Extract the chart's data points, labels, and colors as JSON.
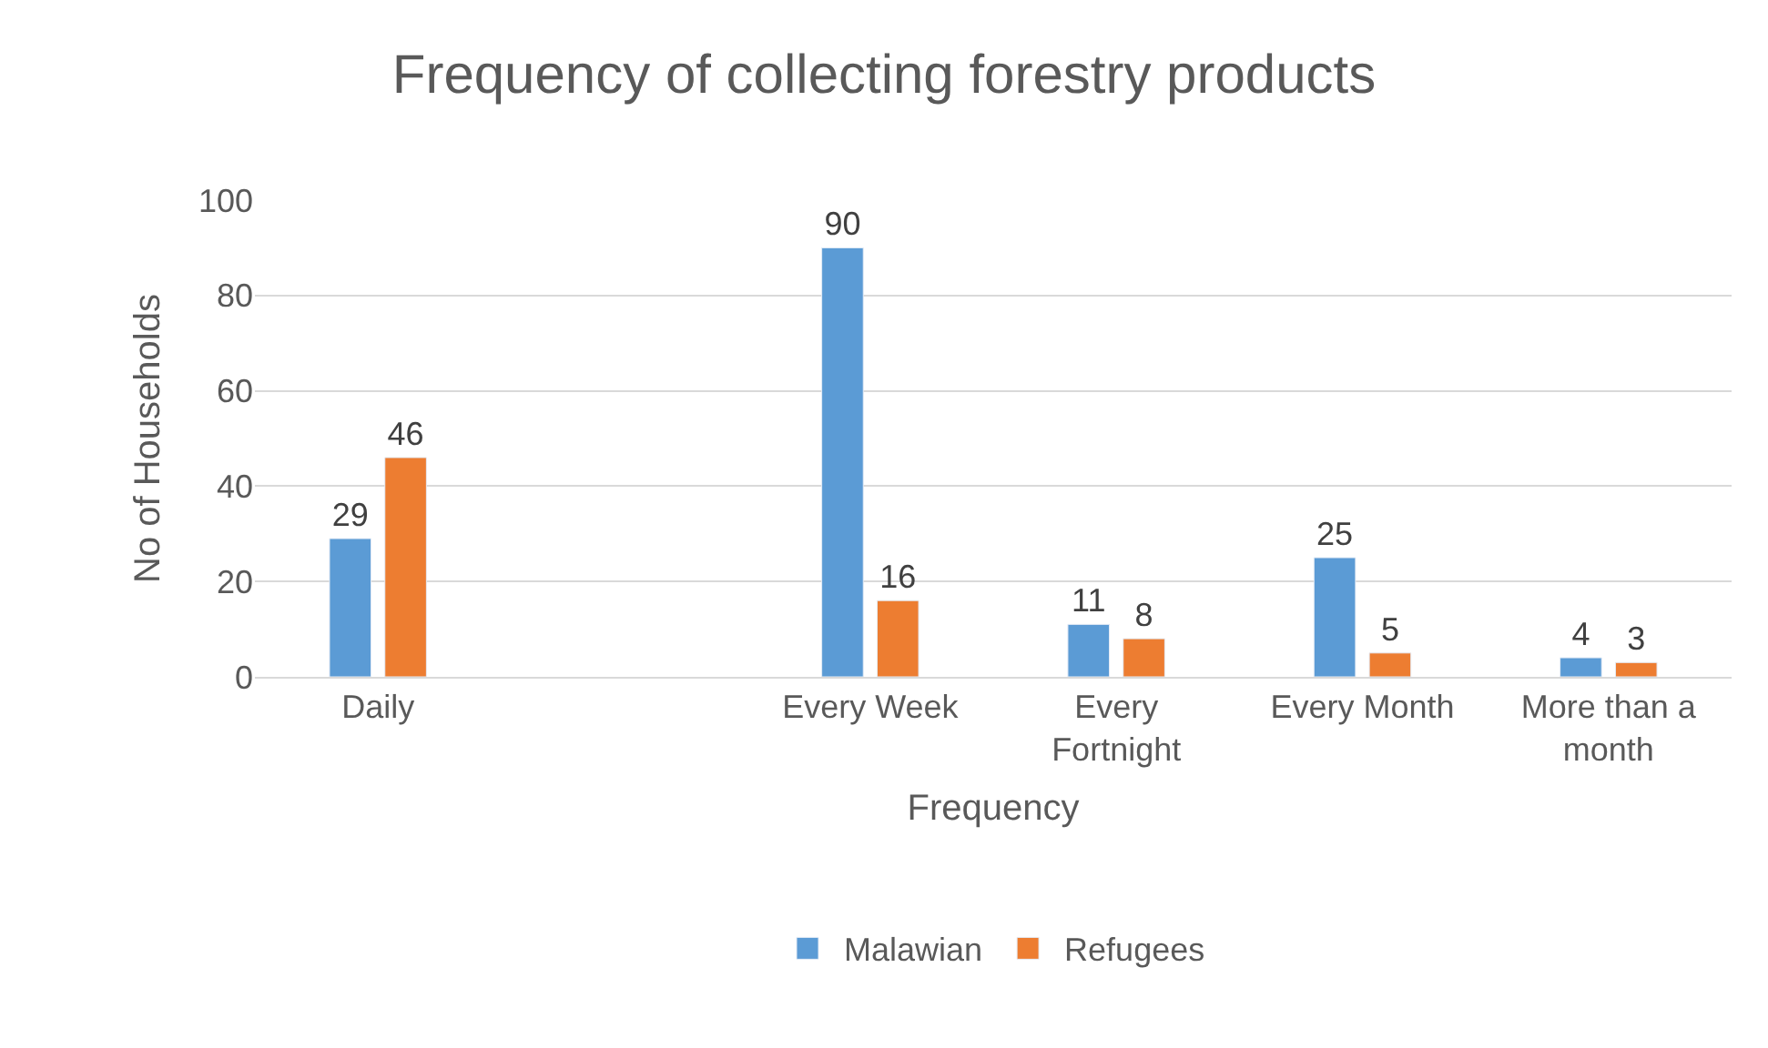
{
  "chart_data": {
    "type": "bar",
    "title": "Frequency of collecting forestry products",
    "xlabel": "Frequency",
    "ylabel": "No of Households",
    "categories": [
      "Daily",
      null,
      "Every Week",
      "Every Fortnight",
      "Every Month",
      "More than a month"
    ],
    "series": [
      {
        "name": "Malawian",
        "color": "#5b9bd5",
        "values": [
          29,
          null,
          90,
          11,
          25,
          4
        ]
      },
      {
        "name": "Refugees",
        "color": "#ed7d31",
        "values": [
          46,
          null,
          16,
          8,
          5,
          3
        ]
      }
    ],
    "ylim": [
      0,
      100
    ],
    "yticks": [
      0,
      20,
      40,
      60,
      80,
      100
    ],
    "grid": "y",
    "legend": "bottom",
    "data_labels": true
  }
}
